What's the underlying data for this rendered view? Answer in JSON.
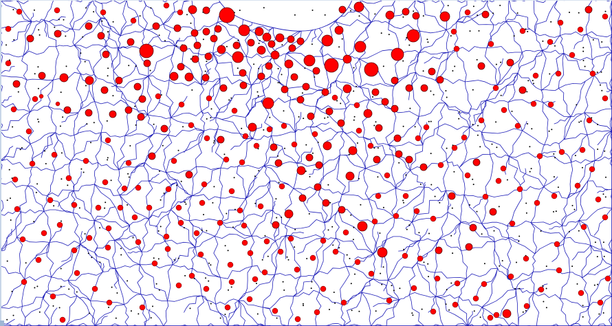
{
  "map": {
    "colors": {
      "background": "#ffffff",
      "boundary": "#1f1fb8",
      "circle_fill": "#ff0000",
      "circle_stroke": "#5a0000",
      "centroid": "#000000",
      "frame": "#c8d6e8"
    },
    "symbols": [
      [
        330,
        22,
        11
      ],
      [
        355,
        44,
        8
      ],
      [
        377,
        46,
        6
      ],
      [
        388,
        54,
        6
      ],
      [
        407,
        55,
        6
      ],
      [
        423,
        57,
        5
      ],
      [
        437,
        60,
        5
      ],
      [
        395,
        64,
        5
      ],
      [
        365,
        62,
        5
      ],
      [
        344,
        66,
        5
      ],
      [
        322,
        72,
        6
      ],
      [
        346,
        83,
        8
      ],
      [
        380,
        73,
        6
      ],
      [
        400,
        80,
        6
      ],
      [
        425,
        70,
        5
      ],
      [
        450,
        88,
        8
      ],
      [
        482,
        95,
        10
      ],
      [
        505,
        86,
        6
      ],
      [
        524,
        68,
        8
      ],
      [
        540,
        101,
        10
      ],
      [
        578,
        79,
        9
      ],
      [
        601,
        52,
        9
      ],
      [
        567,
        22,
        6
      ],
      [
        590,
        17,
        5
      ],
      [
        605,
        23,
        5
      ],
      [
        522,
        10,
        7
      ],
      [
        498,
        14,
        5
      ],
      [
        493,
        44,
        6
      ],
      [
        476,
        59,
        8
      ],
      [
        420,
        93,
        6
      ],
      [
        391,
        96,
        5
      ],
      [
        380,
        111,
        5
      ],
      [
        353,
        106,
        5
      ],
      [
        354,
        124,
        5
      ],
      [
        428,
        112,
        5
      ],
      [
        460,
        103,
        5
      ],
      [
        505,
        129,
        6
      ],
      [
        546,
        134,
        5
      ],
      [
        473,
        134,
        5
      ],
      [
        445,
        126,
        5
      ],
      [
        414,
        130,
        5
      ],
      [
        437,
        145,
        5
      ],
      [
        390,
        150,
        8
      ],
      [
        367,
        185,
        6
      ],
      [
        321,
        203,
        5
      ],
      [
        299,
        113,
        5
      ],
      [
        275,
        112,
        6
      ],
      [
        253,
        111,
        6
      ],
      [
        213,
        74,
        10
      ],
      [
        227,
        38,
        5
      ],
      [
        258,
        41,
        5
      ],
      [
        283,
        48,
        5
      ],
      [
        300,
        46,
        5
      ],
      [
        317,
        42,
        5
      ],
      [
        280,
        14,
        6
      ],
      [
        300,
        15,
        5
      ],
      [
        311,
        56,
        5
      ],
      [
        287,
        66,
        5
      ],
      [
        267,
        70,
        5
      ],
      [
        263,
        97,
        5
      ],
      [
        303,
        82,
        5
      ],
      [
        284,
        86,
        5
      ],
      [
        214,
        92,
        5
      ],
      [
        190,
        61,
        5
      ],
      [
        154,
        79,
        5
      ],
      [
        147,
        52,
        5
      ],
      [
        129,
        38,
        5
      ],
      [
        84,
        49,
        5
      ],
      [
        44,
        56,
        5
      ],
      [
        93,
        113,
        6
      ],
      [
        130,
        117,
        6
      ],
      [
        173,
        117,
        5
      ],
      [
        152,
        131,
        5
      ],
      [
        61,
        110,
        5
      ],
      [
        24,
        122,
        5
      ],
      [
        60,
        140,
        3
      ],
      [
        84,
        151,
        3
      ],
      [
        647,
        24,
        7
      ],
      [
        706,
        21,
        5
      ],
      [
        700,
        96,
        5
      ],
      [
        742,
        91,
        5
      ],
      [
        760,
        131,
        5
      ],
      [
        628,
        104,
        5
      ],
      [
        617,
        128,
        5
      ],
      [
        640,
        116,
        5
      ],
      [
        595,
        128,
        5
      ],
      [
        574,
        117,
        5
      ],
      [
        560,
        148,
        5
      ],
      [
        574,
        158,
        5
      ],
      [
        535,
        165,
        6
      ],
      [
        551,
        186,
        5
      ],
      [
        578,
        201,
        5
      ],
      [
        595,
        232,
        5
      ],
      [
        616,
        243,
        5
      ],
      [
        580,
        224,
        5
      ],
      [
        548,
        232,
        5
      ],
      [
        513,
        219,
        6
      ],
      [
        496,
        179,
        5
      ],
      [
        476,
        212,
        6
      ],
      [
        479,
        162,
        5
      ],
      [
        452,
        169,
        5
      ],
      [
        438,
        248,
        6
      ],
      [
        464,
        240,
        5
      ],
      [
        462,
        272,
        5
      ],
      [
        509,
        256,
        6
      ],
      [
        450,
        229,
        5
      ],
      [
        405,
        237,
        5
      ],
      [
        398,
        214,
        5
      ],
      [
        410,
        271,
        4
      ],
      [
        440,
        288,
        5
      ],
      [
        474,
        295,
        5
      ],
      [
        497,
        305,
        5
      ],
      [
        420,
        311,
        6
      ],
      [
        401,
        327,
        5
      ],
      [
        527,
        329,
        7
      ],
      [
        556,
        367,
        7
      ],
      [
        638,
        364,
        5
      ],
      [
        688,
        331,
        5
      ],
      [
        682,
        359,
        5
      ],
      [
        717,
        308,
        5
      ],
      [
        693,
        236,
        5
      ],
      [
        657,
        285,
        5
      ],
      [
        641,
        240,
        4
      ],
      [
        608,
        201,
        4
      ],
      [
        550,
        285,
        4
      ],
      [
        470,
        350,
        4
      ],
      [
        352,
        236,
        4
      ],
      [
        329,
        232,
        4
      ],
      [
        275,
        254,
        5
      ],
      [
        253,
        234,
        4
      ],
      [
        221,
        227,
        5
      ],
      [
        239,
        187,
        5
      ],
      [
        205,
        170,
        5
      ],
      [
        207,
        144,
        5
      ],
      [
        164,
        166,
        5
      ],
      [
        187,
        160,
        5
      ],
      [
        129,
        164,
        5
      ],
      [
        98,
        160,
        5
      ],
      [
        200,
        126,
        5
      ],
      [
        325,
        128,
        5
      ],
      [
        304,
        143,
        4
      ],
      [
        737,
        456,
        6
      ],
      [
        722,
        458,
        4
      ],
      [
        713,
        462,
        4
      ],
      [
        630,
        453,
        4
      ],
      [
        566,
        437,
        4
      ],
      [
        400,
        452,
        4
      ],
      [
        335,
        385,
        4
      ],
      [
        356,
        353,
        4
      ],
      [
        379,
        300,
        4
      ],
      [
        260,
        302,
        4
      ],
      [
        217,
        302,
        4
      ],
      [
        175,
        302,
        4
      ],
      [
        108,
        298,
        4
      ],
      [
        73,
        291,
        4
      ],
      [
        64,
        339,
        4
      ],
      [
        33,
        348,
        4
      ],
      [
        35,
        410,
        4
      ],
      [
        77,
        431,
        4
      ],
      [
        91,
        465,
        4
      ],
      [
        138,
        420,
        4
      ],
      [
        225,
        383,
        4
      ],
      [
        292,
        370,
        4
      ],
      [
        355,
        328,
        4
      ],
      [
        349,
        306,
        4
      ],
      [
        337,
        278,
        4
      ],
      [
        294,
        295,
        4
      ],
      [
        320,
        324,
        4
      ],
      [
        263,
        324,
        4
      ],
      [
        158,
        332,
        4
      ],
      [
        130,
        346,
        4
      ],
      [
        108,
        364,
        4
      ],
      [
        157,
        360,
        4
      ],
      [
        201,
        352,
        4
      ],
      [
        242,
        344,
        4
      ],
      [
        408,
        366,
        4
      ],
      [
        432,
        392,
        4
      ],
      [
        520,
        381,
        4
      ],
      [
        540,
        398,
        4
      ],
      [
        589,
        372,
        4
      ],
      [
        611,
        376,
        4
      ],
      [
        636,
        405,
        4
      ],
      [
        665,
        412,
        4
      ],
      [
        704,
        413,
        4
      ],
      [
        743,
        402,
        4
      ],
      [
        765,
        376,
        4
      ],
      [
        810,
        355,
        4
      ],
      [
        849,
        330,
        4
      ],
      [
        880,
        316,
        4
      ],
      [
        870,
        290,
        4
      ],
      [
        840,
        270,
        4
      ],
      [
        806,
        285,
        4
      ],
      [
        781,
        295,
        4
      ],
      [
        756,
        275,
        4
      ],
      [
        725,
        263,
        4
      ],
      [
        680,
        255,
        4
      ],
      [
        661,
        215,
        4
      ],
      [
        620,
        185,
        4
      ],
      [
        675,
        200,
        4
      ],
      [
        700,
        175,
        4
      ],
      [
        733,
        160,
        4
      ],
      [
        776,
        151,
        4
      ],
      [
        801,
        152,
        4
      ],
      [
        857,
        175,
        4
      ],
      [
        880,
        143,
        4
      ],
      [
        862,
        107,
        4
      ],
      [
        856,
        14,
        5
      ],
      [
        880,
        24,
        4
      ],
      [
        815,
        33,
        4
      ],
      [
        760,
        45,
        4
      ],
      [
        680,
        18,
        4
      ],
      [
        664,
        71,
        4
      ],
      [
        660,
        46,
        4
      ],
      [
        714,
        64,
        4
      ],
      [
        800,
        61,
        4
      ],
      [
        832,
        80,
        4
      ],
      [
        812,
        107,
        4
      ],
      [
        779,
        110,
        4
      ],
      [
        844,
        43,
        4
      ],
      [
        721,
        128,
        4
      ],
      [
        753,
        183,
        4
      ],
      [
        785,
        227,
        4
      ],
      [
        817,
        221,
        4
      ],
      [
        847,
        218,
        4
      ],
      [
        861,
        246,
        4
      ],
      [
        732,
        245,
        4
      ],
      [
        706,
        286,
        4
      ],
      [
        745,
        325,
        4
      ],
      [
        813,
        393,
        4
      ],
      [
        845,
        426,
        4
      ],
      [
        873,
        440,
        4
      ],
      [
        884,
        405,
        4
      ],
      [
        787,
        421,
        4
      ],
      [
        766,
        445,
        4
      ],
      [
        692,
        434,
        4
      ],
      [
        662,
        443,
        4
      ],
      [
        602,
        419,
        4
      ],
      [
        470,
        420,
        4
      ],
      [
        500,
        440,
        4
      ],
      [
        461,
        454,
        4
      ],
      [
        433,
        464,
        4
      ],
      [
        363,
        435,
        4
      ],
      [
        331,
        447,
        4
      ],
      [
        300,
        420,
        4
      ],
      [
        260,
        415,
        4
      ],
      [
        207,
        447,
        4
      ],
      [
        159,
        440,
        4
      ],
      [
        112,
        397,
        4
      ],
      [
        56,
        378,
        4
      ],
      [
        25,
        304,
        4
      ],
      [
        22,
        261,
        4
      ],
      [
        47,
        238,
        4
      ],
      [
        79,
        225,
        4
      ],
      [
        42,
        191,
        4
      ],
      [
        20,
        159,
        4
      ],
      [
        51,
        144,
        4
      ],
      [
        12,
        92,
        4
      ],
      [
        12,
        42,
        4
      ],
      [
        28,
        17,
        4
      ],
      [
        83,
        15,
        4
      ],
      [
        150,
        18,
        4
      ],
      [
        194,
        30,
        4
      ],
      [
        242,
        8,
        4
      ],
      [
        262,
        18,
        4
      ],
      [
        157,
        204,
        4
      ],
      [
        125,
        234,
        4
      ],
      [
        100,
        259,
        4
      ],
      [
        153,
        265,
        4
      ],
      [
        187,
        237,
        4
      ],
      [
        201,
        273,
        4
      ],
      [
        245,
        275,
        4
      ],
      [
        297,
        268,
        4
      ],
      [
        301,
        201,
        4
      ],
      [
        278,
        182,
        4
      ],
      [
        264,
        152,
        4
      ],
      [
        230,
        140,
        4
      ],
      [
        341,
        161,
        4
      ],
      [
        357,
        198,
        4
      ],
      [
        373,
        212,
        4
      ],
      [
        413,
        183,
        4
      ],
      [
        392,
        188,
        4
      ],
      [
        428,
        210,
        4
      ],
      [
        458,
        195,
        4
      ],
      [
        487,
        142,
        4
      ],
      [
        519,
        153,
        4
      ],
      [
        522,
        190,
        4
      ],
      [
        539,
        212,
        4
      ],
      [
        563,
        255,
        4
      ],
      [
        590,
        285,
        4
      ],
      [
        606,
        307,
        4
      ],
      [
        630,
        318,
        4
      ],
      [
        576,
        314,
        4
      ],
      [
        545,
        322,
        4
      ],
      [
        503,
        338,
        4
      ],
      [
        488,
        366,
        4
      ],
      [
        455,
        375,
        4
      ],
      [
        423,
        347,
        4
      ],
      [
        388,
        351,
        4
      ],
      [
        364,
        368,
        4
      ],
      [
        385,
        396,
        4
      ],
      [
        371,
        406,
        4
      ],
      [
        337,
        410,
        4
      ],
      [
        279,
        401,
        4
      ],
      [
        286,
        339,
        4
      ],
      [
        244,
        362,
        4
      ],
      [
        196,
        316,
        4
      ],
      [
        143,
        302,
        4
      ],
      [
        181,
        274,
        4
      ],
      [
        87,
        327,
        4
      ]
    ],
    "regions": {
      "columns": 26,
      "rows": 13
    }
  }
}
